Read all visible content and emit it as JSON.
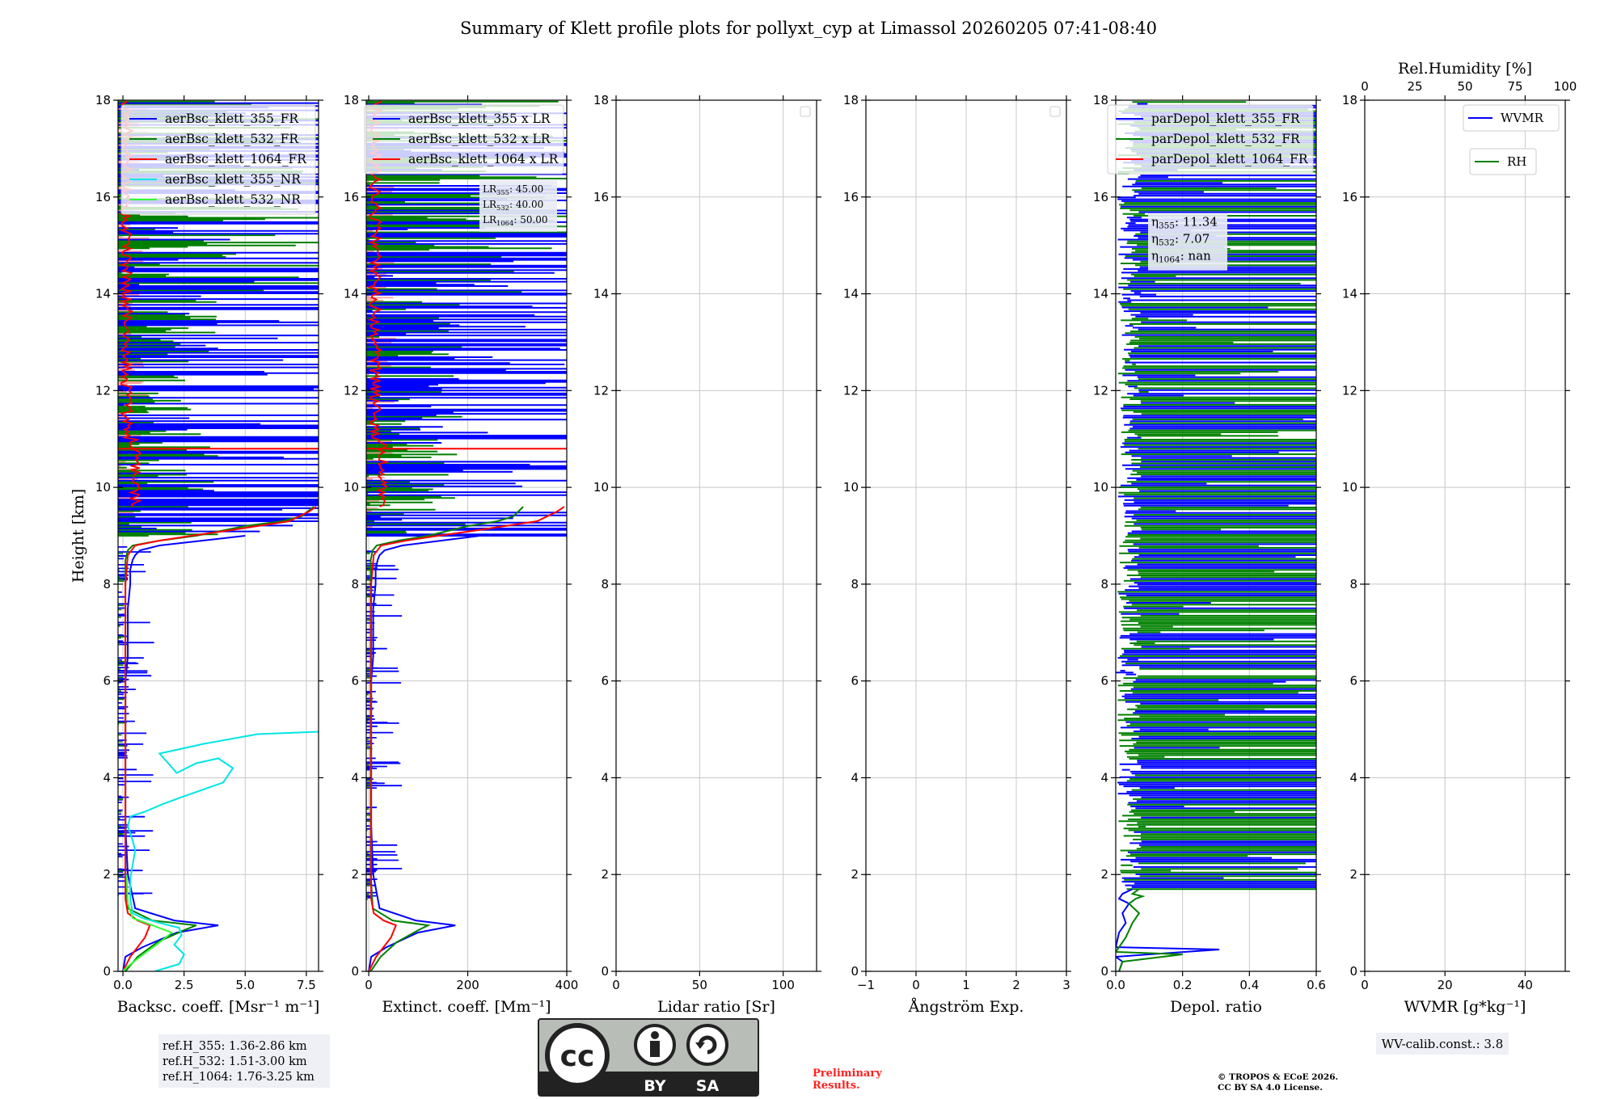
{
  "title": "Summary of Klett profile plots for pollyxt_cyp at Limassol 20260205 07:41-08:40",
  "colors": {
    "blue": "#0000ff",
    "green": "#008000",
    "red": "#ff0000",
    "cyan": "#00e5e5",
    "lime": "#33ff33",
    "salmon": "#ff9a9a",
    "grid": "#c8c8c8",
    "prelim": "#ff2020"
  },
  "chart_data": [
    {
      "type": "line",
      "xlabel": "Backsc. coeff. [Msr⁻¹ m⁻¹]",
      "ylabel": "Height [km]",
      "xlim": [
        -0.2,
        8.0
      ],
      "ylim": [
        0,
        18
      ],
      "xticks": [
        0.0,
        2.5,
        5.0,
        7.5
      ],
      "xticklabels": [
        "0.0",
        "2.5",
        "5.0",
        "7.5"
      ],
      "yticks": [
        0,
        2,
        4,
        6,
        8,
        10,
        12,
        14,
        16,
        18
      ],
      "grid": true,
      "legend": {
        "position": "upper-right",
        "entries": [
          {
            "label": "aerBsc_klett_355_FR",
            "color": "#0000ff"
          },
          {
            "label": "aerBsc_klett_532_FR",
            "color": "#008000"
          },
          {
            "label": "aerBsc_klett_1064_FR",
            "color": "#ff0000"
          },
          {
            "label": "aerBsc_klett_355_NR",
            "color": "#00e5e5"
          },
          {
            "label": "aerBsc_klett_532_NR",
            "color": "#33ff33"
          }
        ]
      },
      "series": [
        {
          "name": "aerBsc_klett_355_FR",
          "color": "#0000ff",
          "x": [
            0.0,
            0.1,
            0.8,
            2.2,
            3.9,
            2.1,
            0.5,
            0.2,
            0.1,
            0.1,
            0.1,
            0.1,
            0.2,
            0.2,
            0.2,
            0.3,
            0.3,
            0.4,
            0.5,
            0.7,
            1.5,
            5.0
          ],
          "y": [
            0.0,
            0.3,
            0.5,
            0.8,
            0.95,
            1.05,
            1.3,
            2.0,
            3.0,
            4.0,
            5.0,
            6.0,
            6.5,
            7.0,
            7.5,
            8.0,
            8.3,
            8.5,
            8.6,
            8.7,
            8.8,
            9.0
          ]
        },
        {
          "name": "aerBsc_klett_532_FR",
          "color": "#008000",
          "x": [
            0.1,
            0.6,
            1.4,
            2.5,
            3.0,
            1.2,
            0.2,
            0.1,
            0.1,
            0.1,
            0.1,
            0.1,
            0.1,
            0.2,
            0.4,
            1.5,
            3.0,
            5.0,
            6.5,
            7.3,
            7.8
          ],
          "y": [
            0.0,
            0.3,
            0.6,
            0.85,
            0.95,
            1.05,
            1.3,
            2.0,
            4.0,
            6.0,
            7.0,
            8.0,
            8.5,
            8.7,
            8.8,
            8.9,
            9.0,
            9.2,
            9.3,
            9.4,
            9.6
          ]
        },
        {
          "name": "aerBsc_klett_1064_FR",
          "color": "#ff0000",
          "x": [
            0.0,
            0.3,
            0.9,
            1.1,
            0.6,
            0.2,
            0.1,
            0.1,
            0.1,
            0.1,
            0.1,
            0.2,
            0.5,
            1.5,
            2.8,
            4.2,
            5.5,
            6.8,
            7.6,
            7.9
          ],
          "y": [
            0.0,
            0.3,
            0.7,
            0.95,
            1.05,
            1.2,
            1.5,
            3.0,
            5.0,
            7.0,
            8.0,
            8.6,
            8.8,
            8.9,
            9.0,
            9.1,
            9.2,
            9.3,
            9.5,
            9.6
          ]
        },
        {
          "name": "aerBsc_klett_355_NR",
          "color": "#00e5e5",
          "x": [
            1.3,
            2.3,
            2.5,
            2.1,
            2.4,
            2.3,
            1.5,
            0.8,
            0.4,
            0.3,
            0.3,
            0.4,
            0.5,
            0.4,
            0.2,
            0.3,
            0.9,
            1.6,
            2.4,
            4.1,
            4.5,
            3.9,
            3.0,
            2.2,
            1.5,
            3.3,
            5.5,
            8.0
          ],
          "y": [
            0.0,
            0.15,
            0.35,
            0.55,
            0.75,
            0.9,
            1.0,
            1.1,
            1.2,
            1.5,
            1.9,
            2.2,
            2.5,
            2.7,
            3.0,
            3.2,
            3.3,
            3.45,
            3.6,
            3.9,
            4.2,
            4.4,
            4.3,
            4.1,
            4.5,
            4.7,
            4.9,
            4.95
          ]
        },
        {
          "name": "aerBsc_klett_532_NR",
          "color": "#33ff33",
          "x": [
            0.0,
            0.2,
            0.7,
            1.5,
            2.0,
            1.2,
            0.4,
            0.2,
            0.15
          ],
          "y": [
            0.0,
            0.1,
            0.3,
            0.6,
            0.8,
            0.95,
            1.1,
            1.4,
            2.0
          ]
        }
      ],
      "noise_region_km": [
        9.0,
        18.0
      ]
    },
    {
      "type": "line",
      "xlabel": "Extinct. coeff. [Mm⁻¹]",
      "xlim": [
        -5,
        400
      ],
      "ylim": [
        0,
        18
      ],
      "xticks": [
        0,
        200,
        400
      ],
      "xticklabels": [
        "0",
        "200",
        "400"
      ],
      "yticks": [
        0,
        2,
        4,
        6,
        8,
        10,
        12,
        14,
        16,
        18
      ],
      "grid": true,
      "legend": {
        "position": "upper-right",
        "entries": [
          {
            "label": "aerBsc_klett_355 x LR",
            "color": "#0000ff"
          },
          {
            "label": "aerBsc_klett_532 x LR",
            "color": "#008000"
          },
          {
            "label": "aerBsc_klett_1064 x LR",
            "color": "#ff0000"
          }
        ]
      },
      "annotation": {
        "lines": [
          {
            "prefix": "LR",
            "sub": "355",
            "value": ": 45.00"
          },
          {
            "prefix": "LR",
            "sub": "532",
            "value": ": 40.00"
          },
          {
            "prefix": "LR",
            "sub": "1064",
            "value": ": 50.00"
          }
        ]
      },
      "series": [
        {
          "name": "aerBsc_klett_355 x LR",
          "color": "#0000ff",
          "x": [
            0,
            5,
            36,
            99,
            175,
            95,
            22,
            9,
            5,
            5,
            5,
            5,
            9,
            9,
            9,
            14,
            14,
            18,
            22,
            32,
            68,
            225
          ],
          "y": [
            0.0,
            0.3,
            0.5,
            0.8,
            0.95,
            1.05,
            1.3,
            2.0,
            3.0,
            4.0,
            5.0,
            6.0,
            6.5,
            7.0,
            7.5,
            8.0,
            8.3,
            8.5,
            8.6,
            8.7,
            8.8,
            9.0
          ]
        },
        {
          "name": "aerBsc_klett_532 x LR",
          "color": "#008000",
          "x": [
            4,
            24,
            56,
            100,
            120,
            48,
            8,
            4,
            4,
            4,
            4,
            4,
            4,
            8,
            16,
            60,
            120,
            200,
            260,
            292,
            312
          ],
          "y": [
            0.0,
            0.3,
            0.6,
            0.85,
            0.95,
            1.05,
            1.3,
            2.0,
            4.0,
            6.0,
            7.0,
            8.0,
            8.5,
            8.7,
            8.8,
            8.9,
            9.0,
            9.2,
            9.3,
            9.4,
            9.6
          ]
        },
        {
          "name": "aerBsc_klett_1064 x LR",
          "color": "#ff0000",
          "x": [
            0,
            15,
            45,
            55,
            30,
            10,
            5,
            5,
            5,
            5,
            5,
            10,
            25,
            75,
            140,
            210,
            275,
            340,
            380,
            395
          ],
          "y": [
            0.0,
            0.3,
            0.7,
            0.95,
            1.05,
            1.2,
            1.5,
            3.0,
            5.0,
            7.0,
            8.0,
            8.6,
            8.8,
            8.9,
            9.0,
            9.1,
            9.2,
            9.3,
            9.5,
            9.6
          ]
        }
      ],
      "noise_region_km": [
        9.0,
        18.0
      ]
    },
    {
      "type": "line",
      "xlabel": "Lidar ratio [Sr]",
      "xlim": [
        0,
        120
      ],
      "ylim": [
        0,
        18
      ],
      "xticks": [
        0,
        50,
        100
      ],
      "xticklabels": [
        "0",
        "50",
        "100"
      ],
      "yticks": [
        0,
        2,
        4,
        6,
        8,
        10,
        12,
        14,
        16,
        18
      ],
      "grid": true,
      "legend": {
        "position": "upper-right",
        "entries": []
      },
      "series": []
    },
    {
      "type": "line",
      "xlabel": "Ångström Exp.",
      "xlim": [
        -1,
        3
      ],
      "ylim": [
        0,
        18
      ],
      "xticks": [
        -1,
        0,
        1,
        2,
        3
      ],
      "xticklabels": [
        "−1",
        "0",
        "1",
        "2",
        "3"
      ],
      "yticks": [
        0,
        2,
        4,
        6,
        8,
        10,
        12,
        14,
        16,
        18
      ],
      "grid": true,
      "legend": {
        "position": "upper-right",
        "entries": []
      },
      "series": []
    },
    {
      "type": "line",
      "xlabel": "Depol. ratio",
      "xlim": [
        0,
        0.6
      ],
      "ylim": [
        0,
        18
      ],
      "xticks": [
        0.0,
        0.2,
        0.4,
        0.6
      ],
      "xticklabels": [
        "0.0",
        "0.2",
        "0.4",
        "0.6"
      ],
      "yticks": [
        0,
        2,
        4,
        6,
        8,
        10,
        12,
        14,
        16,
        18
      ],
      "grid": true,
      "legend": {
        "position": "upper-right",
        "entries": [
          {
            "label": "parDepol_klett_355_FR",
            "color": "#0000ff"
          },
          {
            "label": "parDepol_klett_532_FR",
            "color": "#008000"
          },
          {
            "label": "parDepol_klett_1064_FR",
            "color": "#ff0000"
          }
        ]
      },
      "annotation": {
        "lines": [
          {
            "prefix": "η",
            "sub": "355",
            "value": ": 11.34"
          },
          {
            "prefix": "η",
            "sub": "532",
            "value": ": 7.07"
          },
          {
            "prefix": "η",
            "sub": "1064",
            "value": ": nan"
          }
        ]
      },
      "series": [
        {
          "name": "parDepol_klett_355_FR",
          "color": "#0000ff",
          "x": [
            0.01,
            0.02,
            0.0,
            0.31,
            0.0,
            0.01,
            0.03,
            0.02,
            0.04,
            0.01,
            0.02,
            0.05
          ],
          "y": [
            0.0,
            0.2,
            0.3,
            0.45,
            0.5,
            0.8,
            1.0,
            1.2,
            1.4,
            1.5,
            1.6,
            1.7
          ]
        },
        {
          "name": "parDepol_klett_532_FR",
          "color": "#008000",
          "x": [
            0.01,
            0.02,
            0.2,
            0.0,
            0.03,
            0.05,
            0.07,
            0.04,
            0.06,
            0.08,
            0.05,
            0.07
          ],
          "y": [
            0.0,
            0.2,
            0.35,
            0.4,
            0.7,
            1.0,
            1.2,
            1.4,
            1.5,
            1.55,
            1.6,
            1.7
          ]
        }
      ],
      "noise_region_km": [
        1.7,
        18.0
      ]
    },
    {
      "type": "line",
      "xlabel": "WVMR [g*kg⁻¹]",
      "x2label": "Rel.Humidity [%]",
      "xlim": [
        0,
        50
      ],
      "x2lim": [
        0,
        100
      ],
      "ylim": [
        0,
        18
      ],
      "xticks": [
        0,
        20,
        40
      ],
      "xticklabels": [
        "0",
        "20",
        "40"
      ],
      "x2ticks": [
        0,
        25,
        50,
        75,
        100
      ],
      "x2ticklabels": [
        "0",
        "25",
        "50",
        "75",
        "100"
      ],
      "yticks": [
        0,
        2,
        4,
        6,
        8,
        10,
        12,
        14,
        16,
        18
      ],
      "grid": true,
      "legend": {
        "position": "upper-right",
        "entries": [
          {
            "label": "WVMR",
            "color": "#0000ff"
          },
          {
            "label": "RH",
            "color": "#008000"
          }
        ]
      },
      "series": []
    }
  ],
  "info": {
    "refh": [
      "ref.H_355: 1.36-2.86 km",
      "ref.H_532: 1.51-3.00 km",
      "ref.H_1064: 1.76-3.25 km"
    ],
    "wv_calib": "WV-calib.const.: 3.8",
    "cc_by": "BY",
    "cc_sa": "SA",
    "prelim": [
      "Preliminary",
      "Results."
    ],
    "copyright": [
      "© TROPOS & ECoE 2026.",
      "CC BY SA 4.0 License."
    ]
  }
}
